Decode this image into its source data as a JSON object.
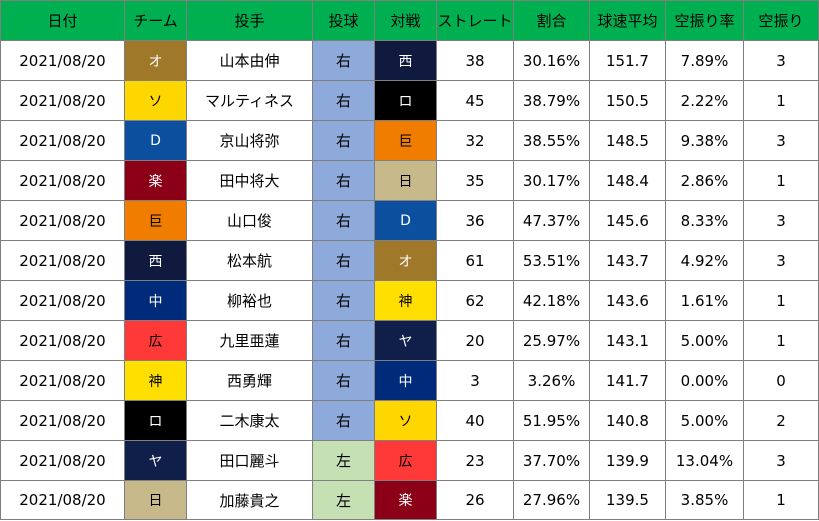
{
  "header": {
    "columns": [
      "日付",
      "チーム",
      "投手",
      "投球",
      "対戦",
      "ストレート",
      "割合",
      "球速平均",
      "空振り率",
      "空振り"
    ],
    "bg": "#00b050"
  },
  "team_colors": {
    "オ": {
      "bg": "#a0782a",
      "fg": "#ffffff"
    },
    "ソ": {
      "bg": "#ffd700",
      "fg": "#000000"
    },
    "D": {
      "bg": "#0b4f9e",
      "fg": "#ffffff"
    },
    "楽": {
      "bg": "#8b0017",
      "fg": "#ffffff"
    },
    "巨": {
      "bg": "#f07d00",
      "fg": "#000000"
    },
    "西": {
      "bg": "#101a3f",
      "fg": "#ffffff"
    },
    "中": {
      "bg": "#002a7a",
      "fg": "#ffffff"
    },
    "広": {
      "bg": "#ff3838",
      "fg": "#000000"
    },
    "神": {
      "bg": "#ffdf00",
      "fg": "#000000"
    },
    "ロ": {
      "bg": "#000000",
      "fg": "#ffffff"
    },
    "ヤ": {
      "bg": "#0f1f4a",
      "fg": "#ffffff"
    },
    "日": {
      "bg": "#c8b98a",
      "fg": "#000000"
    }
  },
  "hand_colors": {
    "右": "#8eaadb",
    "左": "#c5e0b3"
  },
  "rows": [
    {
      "date": "2021/08/20",
      "team": "オ",
      "pitcher": "山本由伸",
      "hand": "右",
      "opp": "西",
      "straight": "38",
      "ratio": "30.16%",
      "avg_speed": "151.7",
      "whiff_rate": "7.89%",
      "whiffs": "3"
    },
    {
      "date": "2021/08/20",
      "team": "ソ",
      "pitcher": "マルティネス",
      "hand": "右",
      "opp": "ロ",
      "straight": "45",
      "ratio": "38.79%",
      "avg_speed": "150.5",
      "whiff_rate": "2.22%",
      "whiffs": "1"
    },
    {
      "date": "2021/08/20",
      "team": "D",
      "pitcher": "京山将弥",
      "hand": "右",
      "opp": "巨",
      "straight": "32",
      "ratio": "38.55%",
      "avg_speed": "148.5",
      "whiff_rate": "9.38%",
      "whiffs": "3"
    },
    {
      "date": "2021/08/20",
      "team": "楽",
      "pitcher": "田中将大",
      "hand": "右",
      "opp": "日",
      "straight": "35",
      "ratio": "30.17%",
      "avg_speed": "148.4",
      "whiff_rate": "2.86%",
      "whiffs": "1"
    },
    {
      "date": "2021/08/20",
      "team": "巨",
      "pitcher": "山口俊",
      "hand": "右",
      "opp": "D",
      "straight": "36",
      "ratio": "47.37%",
      "avg_speed": "145.6",
      "whiff_rate": "8.33%",
      "whiffs": "3"
    },
    {
      "date": "2021/08/20",
      "team": "西",
      "pitcher": "松本航",
      "hand": "右",
      "opp": "オ",
      "straight": "61",
      "ratio": "53.51%",
      "avg_speed": "143.7",
      "whiff_rate": "4.92%",
      "whiffs": "3"
    },
    {
      "date": "2021/08/20",
      "team": "中",
      "pitcher": "柳裕也",
      "hand": "右",
      "opp": "神",
      "straight": "62",
      "ratio": "42.18%",
      "avg_speed": "143.6",
      "whiff_rate": "1.61%",
      "whiffs": "1"
    },
    {
      "date": "2021/08/20",
      "team": "広",
      "pitcher": "九里亜蓮",
      "hand": "右",
      "opp": "ヤ",
      "straight": "20",
      "ratio": "25.97%",
      "avg_speed": "143.1",
      "whiff_rate": "5.00%",
      "whiffs": "1"
    },
    {
      "date": "2021/08/20",
      "team": "神",
      "pitcher": "西勇輝",
      "hand": "右",
      "opp": "中",
      "straight": "3",
      "ratio": "3.26%",
      "avg_speed": "141.7",
      "whiff_rate": "0.00%",
      "whiffs": "0"
    },
    {
      "date": "2021/08/20",
      "team": "ロ",
      "pitcher": "二木康太",
      "hand": "右",
      "opp": "ソ",
      "straight": "40",
      "ratio": "51.95%",
      "avg_speed": "140.8",
      "whiff_rate": "5.00%",
      "whiffs": "2"
    },
    {
      "date": "2021/08/20",
      "team": "ヤ",
      "pitcher": "田口麗斗",
      "hand": "左",
      "opp": "広",
      "straight": "23",
      "ratio": "37.70%",
      "avg_speed": "139.9",
      "whiff_rate": "13.04%",
      "whiffs": "3"
    },
    {
      "date": "2021/08/20",
      "team": "日",
      "pitcher": "加藤貴之",
      "hand": "左",
      "opp": "楽",
      "straight": "26",
      "ratio": "27.96%",
      "avg_speed": "139.5",
      "whiff_rate": "3.85%",
      "whiffs": "1"
    }
  ]
}
